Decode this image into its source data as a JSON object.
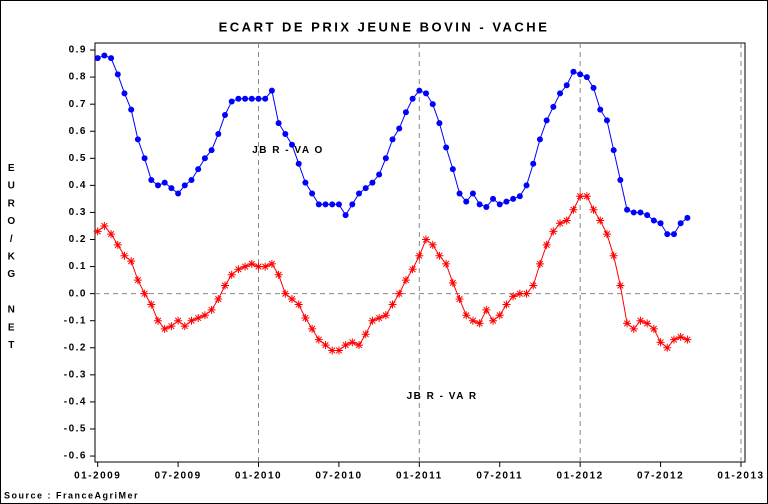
{
  "chart_data": {
    "type": "line",
    "title": "ECART DE PRIX JEUNE BOVIN - VACHE",
    "y_label": "EURO/KG NET",
    "source": "Source : FranceAgriMer",
    "annotations": [
      {
        "text": "JB R - VA O",
        "x": 14.2,
        "y": 0.53
      },
      {
        "text": "JB R - VA R",
        "x": 25.7,
        "y": -0.38
      }
    ],
    "x": [
      0,
      0.5,
      1,
      1.5,
      2,
      2.5,
      3,
      3.5,
      4,
      4.5,
      5,
      5.5,
      6,
      6.5,
      7,
      7.5,
      8,
      8.5,
      9,
      9.5,
      10,
      10.5,
      11,
      11.5,
      12,
      12.5,
      13,
      13.5,
      14,
      14.5,
      15,
      15.5,
      16,
      16.5,
      17,
      17.5,
      18,
      18.5,
      19,
      19.5,
      20,
      20.5,
      21,
      21.5,
      22,
      22.5,
      23,
      23.5,
      24,
      24.5,
      25,
      25.5,
      26,
      26.5,
      27,
      27.5,
      28,
      28.5,
      29,
      29.5,
      30,
      30.5,
      31,
      31.5,
      32,
      32.5,
      33,
      33.5,
      34,
      34.5,
      35,
      35.5,
      36,
      36.5,
      37,
      37.5,
      38,
      38.5,
      39,
      39.5,
      40,
      40.5,
      41,
      41.5,
      42,
      42.5,
      43,
      43.5,
      44
    ],
    "series": [
      {
        "name": "JB R - VA O",
        "color": "#0000ff",
        "marker": "circle",
        "values": [
          0.87,
          0.88,
          0.87,
          0.81,
          0.74,
          0.68,
          0.57,
          0.5,
          0.42,
          0.4,
          0.41,
          0.39,
          0.37,
          0.4,
          0.42,
          0.46,
          0.5,
          0.53,
          0.59,
          0.66,
          0.71,
          0.72,
          0.72,
          0.72,
          0.72,
          0.72,
          0.75,
          0.63,
          0.59,
          0.55,
          0.48,
          0.41,
          0.37,
          0.33,
          0.33,
          0.33,
          0.33,
          0.29,
          0.33,
          0.37,
          0.39,
          0.41,
          0.44,
          0.5,
          0.57,
          0.61,
          0.67,
          0.72,
          0.75,
          0.74,
          0.7,
          0.63,
          0.54,
          0.46,
          0.37,
          0.34,
          0.37,
          0.33,
          0.32,
          0.35,
          0.33,
          0.34,
          0.35,
          0.36,
          0.4,
          0.48,
          0.57,
          0.64,
          0.69,
          0.74,
          0.77,
          0.82,
          0.81,
          0.8,
          0.76,
          0.68,
          0.64,
          0.53,
          0.42,
          0.31,
          0.3,
          0.3,
          0.29,
          0.27,
          0.26,
          0.22,
          0.22,
          0.26,
          0.28
        ]
      },
      {
        "name": "JB R - VA R",
        "color": "#ff0000",
        "marker": "star",
        "values": [
          0.23,
          0.25,
          0.22,
          0.18,
          0.14,
          0.12,
          0.05,
          0.0,
          -0.04,
          -0.1,
          -0.13,
          -0.12,
          -0.1,
          -0.12,
          -0.1,
          -0.09,
          -0.08,
          -0.06,
          -0.02,
          0.03,
          0.07,
          0.09,
          0.1,
          0.11,
          0.1,
          0.1,
          0.11,
          0.07,
          0.0,
          -0.02,
          -0.04,
          -0.09,
          -0.13,
          -0.17,
          -0.19,
          -0.21,
          -0.21,
          -0.19,
          -0.18,
          -0.19,
          -0.15,
          -0.1,
          -0.09,
          -0.08,
          -0.04,
          0.0,
          0.05,
          0.09,
          0.14,
          0.2,
          0.18,
          0.14,
          0.11,
          0.04,
          -0.02,
          -0.08,
          -0.1,
          -0.11,
          -0.06,
          -0.1,
          -0.08,
          -0.04,
          -0.01,
          0.0,
          0.0,
          0.03,
          0.11,
          0.18,
          0.23,
          0.26,
          0.27,
          0.31,
          0.36,
          0.36,
          0.31,
          0.27,
          0.22,
          0.14,
          0.03,
          -0.11,
          -0.13,
          -0.1,
          -0.11,
          -0.13,
          -0.18,
          -0.2,
          -0.17,
          -0.16,
          -0.17
        ]
      }
    ],
    "xlim": [
      -0.2,
      48.3
    ],
    "xticks": [
      {
        "value": 0,
        "label": "01-2009"
      },
      {
        "value": 6,
        "label": "07-2009"
      },
      {
        "value": 12,
        "label": "01-2010"
      },
      {
        "value": 18,
        "label": "07-2010"
      },
      {
        "value": 24,
        "label": "01-2011"
      },
      {
        "value": 30,
        "label": "07-2011"
      },
      {
        "value": 36,
        "label": "01-2012"
      },
      {
        "value": 42,
        "label": "07-2012"
      },
      {
        "value": 48,
        "label": "01-2013"
      }
    ],
    "ylim": [
      -0.622,
      0.926
    ],
    "yticks": [
      {
        "value": -0.6,
        "label": "-0.6"
      },
      {
        "value": -0.5,
        "label": "-0.5"
      },
      {
        "value": -0.4,
        "label": "-0.4"
      },
      {
        "value": -0.3,
        "label": "-0.3"
      },
      {
        "value": -0.2,
        "label": "-0.2"
      },
      {
        "value": -0.1,
        "label": "-0.1"
      },
      {
        "value": 0,
        "label": "0.0"
      },
      {
        "value": 0.1,
        "label": "0.1"
      },
      {
        "value": 0.2,
        "label": "0.2"
      },
      {
        "value": 0.3,
        "label": "0.3"
      },
      {
        "value": 0.4,
        "label": "0.4"
      },
      {
        "value": 0.5,
        "label": "0.5"
      },
      {
        "value": 0.6,
        "label": "0.6"
      },
      {
        "value": 0.7,
        "label": "0.7"
      },
      {
        "value": 0.8,
        "label": "0.8"
      },
      {
        "value": 0.9,
        "label": "0.9"
      }
    ],
    "x_reflines": [
      12,
      24,
      36,
      48
    ],
    "y_reflines": [
      0
    ]
  }
}
